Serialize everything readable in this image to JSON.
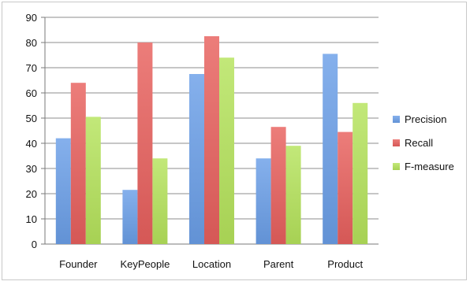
{
  "chart_data": {
    "type": "bar",
    "categories": [
      "Founder",
      "KeyPeople",
      "Location",
      "Parent",
      "Product"
    ],
    "series": [
      {
        "name": "Precision",
        "values": [
          42,
          21.5,
          67.5,
          34,
          75.5
        ],
        "color": "#6a9fe8"
      },
      {
        "name": "Recall",
        "values": [
          64,
          80,
          82.5,
          46.5,
          44.5
        ],
        "color": "#e8605d"
      },
      {
        "name": "F-measure",
        "values": [
          50.5,
          34,
          74,
          39,
          56
        ],
        "color": "#b5e35b"
      }
    ],
    "ylim": [
      0,
      90
    ],
    "yticks": [
      0,
      10,
      20,
      30,
      40,
      50,
      60,
      70,
      80,
      90
    ],
    "grid": true,
    "legend_position": "right"
  }
}
